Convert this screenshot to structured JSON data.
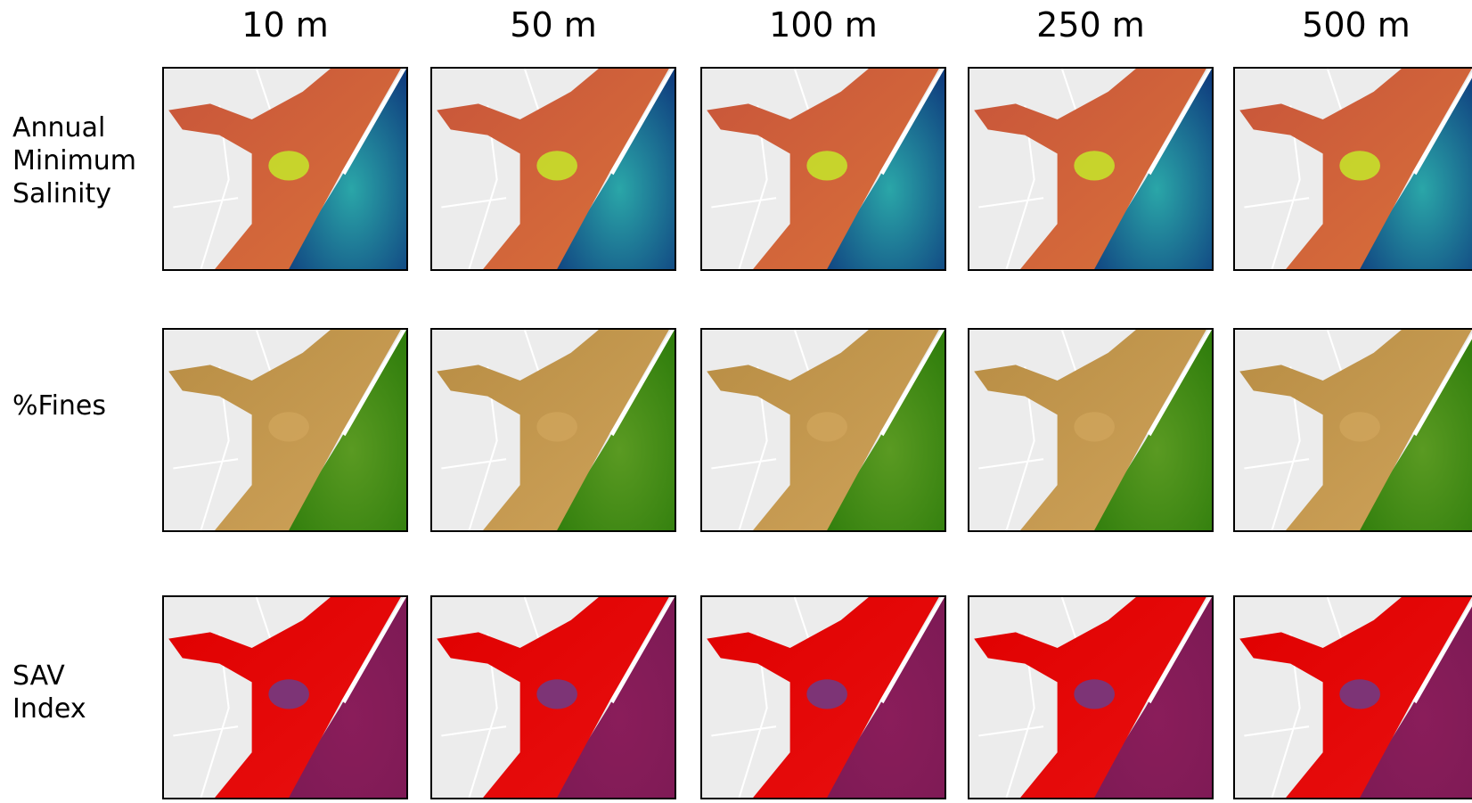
{
  "columns": [
    "10 m",
    "50 m",
    "100 m",
    "250 m",
    "500 m"
  ],
  "rows": [
    {
      "label_lines": [
        "Annual",
        "Minimum",
        "Salinity"
      ]
    },
    {
      "label_lines": [
        "%Fines"
      ]
    },
    {
      "label_lines": [
        "SAV",
        "Index"
      ]
    }
  ]
}
